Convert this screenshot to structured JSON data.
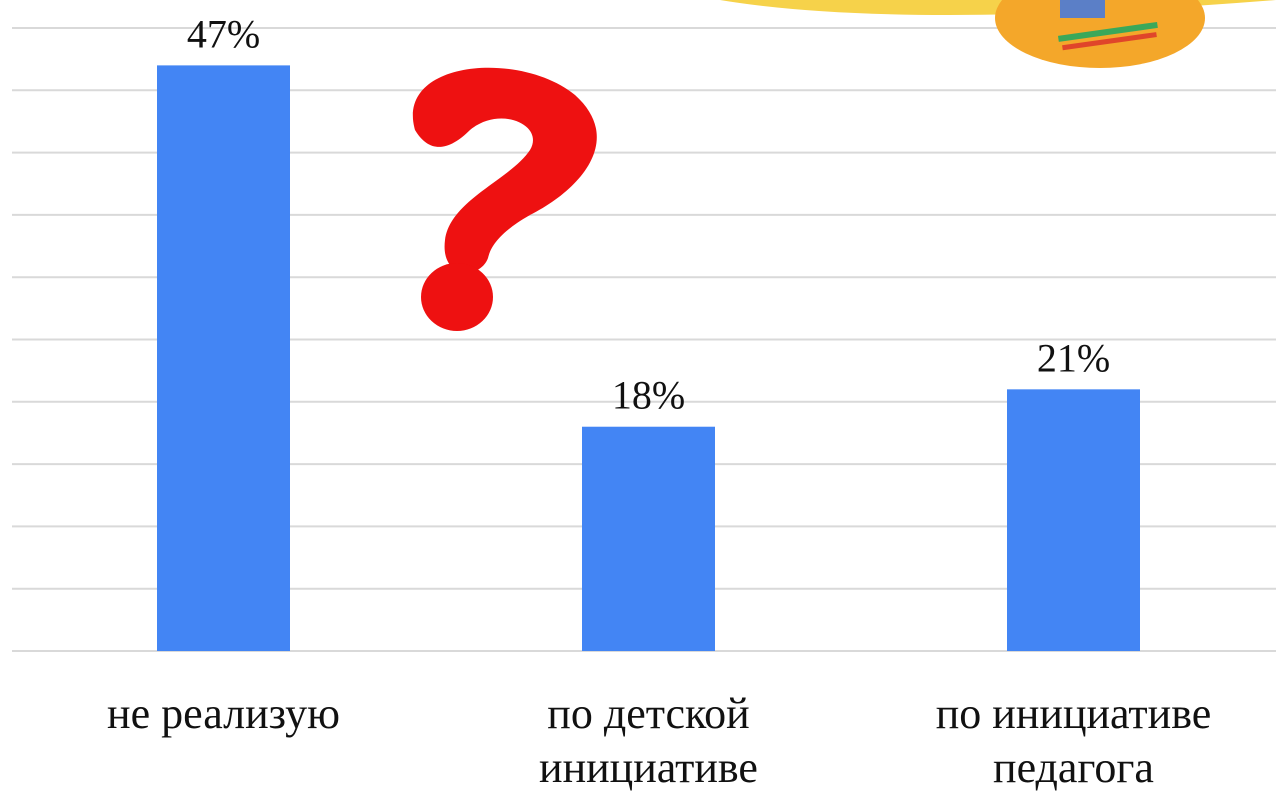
{
  "chart_data": {
    "type": "bar",
    "categories": [
      "не реализую",
      "по детской инициативе",
      "по инициативе педагога"
    ],
    "values": [
      47,
      18,
      21
    ],
    "value_labels": [
      "47%",
      "18%",
      "21%"
    ],
    "color": "#4385f4",
    "ylim": [
      0,
      50
    ],
    "yticks": [
      0,
      5,
      10,
      15,
      20,
      25,
      30,
      35,
      40,
      45,
      50
    ],
    "grid": true
  }
}
